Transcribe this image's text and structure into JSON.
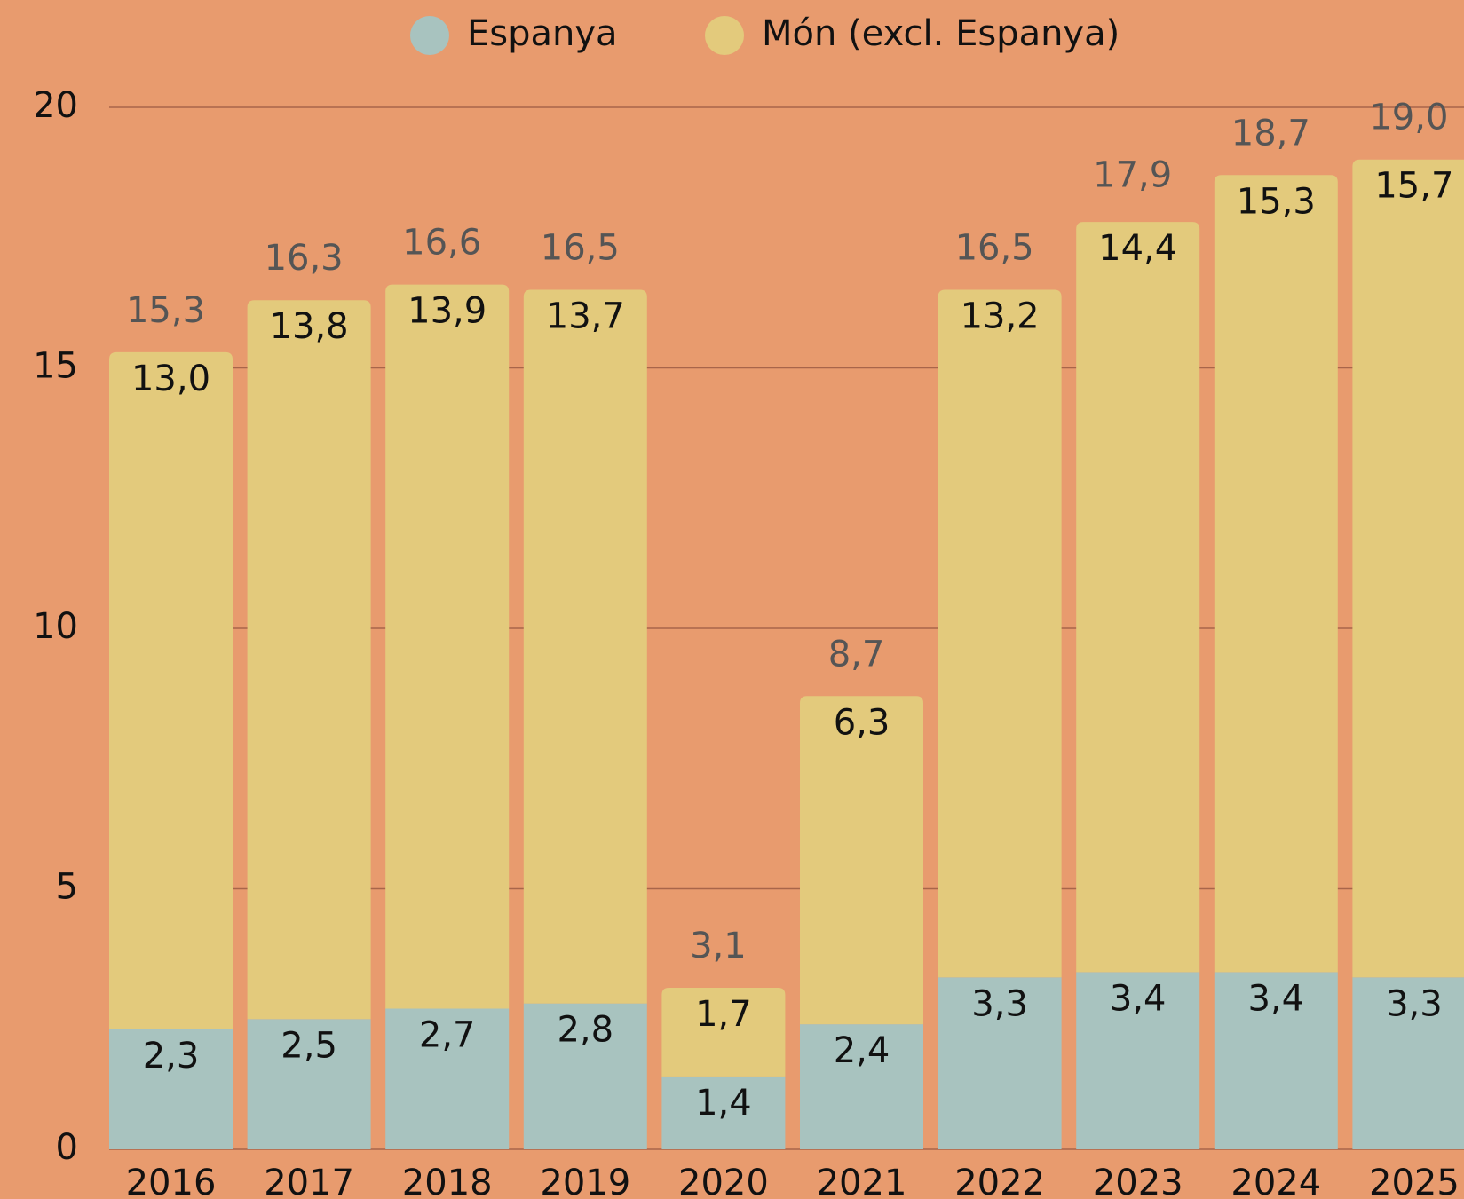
{
  "chart_data": {
    "type": "stacked_bar",
    "categories": [
      "2016",
      "2017",
      "2018",
      "2019",
      "2020",
      "2021",
      "2022",
      "2023",
      "2024",
      "2025"
    ],
    "series": [
      {
        "name": "Espanya",
        "color": "#a8c3bf",
        "values": [
          2.3,
          2.5,
          2.7,
          2.8,
          1.4,
          2.4,
          3.3,
          3.4,
          3.4,
          3.3
        ],
        "value_labels": [
          "2,3",
          "2,5",
          "2,7",
          "2,8",
          "1,4",
          "2,4",
          "3,3",
          "3,4",
          "3,4",
          "3,3"
        ]
      },
      {
        "name": "Món (excl. Espanya)",
        "color": "#e3ca7c",
        "values": [
          13.0,
          13.8,
          13.9,
          13.7,
          1.7,
          6.3,
          13.2,
          14.4,
          15.3,
          15.7
        ],
        "value_labels": [
          "13,0",
          "13,8",
          "13,9",
          "13,7",
          "1,7",
          "6,3",
          "13,2",
          "14,4",
          "15,3",
          "15,7"
        ]
      }
    ],
    "totals": [
      15.3,
      16.3,
      16.6,
      16.5,
      3.1,
      8.7,
      16.5,
      17.9,
      18.7,
      19.0
    ],
    "total_labels": [
      "15,3",
      "16,3",
      "16,6",
      "16,5",
      "3,1",
      "8,7",
      "16,5",
      "17,9",
      "18,7",
      "19,0"
    ],
    "ylim": [
      0,
      20
    ],
    "yticks": [
      0,
      5,
      10,
      15,
      20
    ],
    "grid": true,
    "legend": "top"
  }
}
